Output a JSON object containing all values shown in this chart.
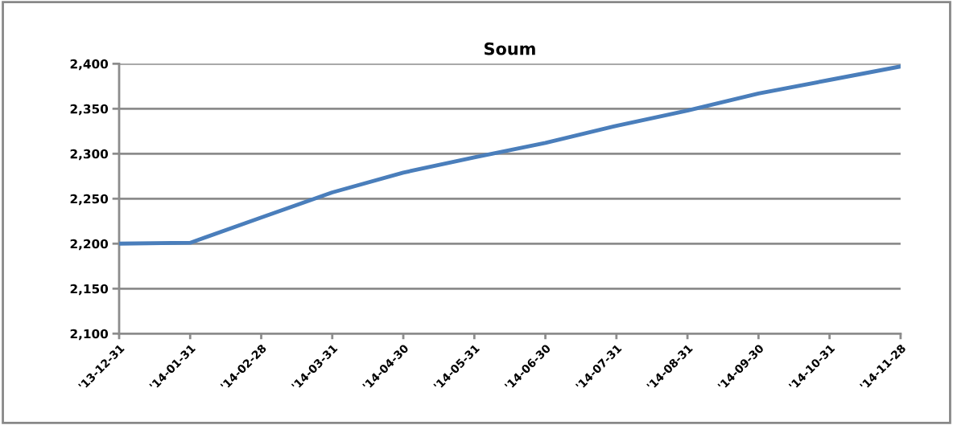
{
  "chart_data": {
    "type": "line",
    "title": "Soum",
    "categories": [
      "'13-12-31",
      "'14-01-31",
      "'14-02-28",
      "'14-03-31",
      "'14-04-30",
      "'14-05-31",
      "'14-06-30",
      "'14-07-31",
      "'14-08-31",
      "'14-09-30",
      "'14-10-31",
      "'14-11-28"
    ],
    "series": [
      {
        "color": "#4a7ebb",
        "values": [
          2200,
          2201,
          2229,
          2257,
          2279,
          2296,
          2312,
          2331,
          2348,
          2367,
          2382,
          2397
        ]
      }
    ],
    "ylim": [
      2100,
      2400
    ],
    "yticks": [
      {
        "value": 2100,
        "label": "2,100"
      },
      {
        "value": 2150,
        "label": "2,150"
      },
      {
        "value": 2200,
        "label": "2,200"
      },
      {
        "value": 2250,
        "label": "2,250"
      },
      {
        "value": 2300,
        "label": "2,300"
      },
      {
        "value": 2350,
        "label": "2,350"
      },
      {
        "value": 2400,
        "label": "2,400"
      }
    ],
    "grid": "y",
    "legend": false,
    "marker": "none",
    "line_style": "solid"
  }
}
